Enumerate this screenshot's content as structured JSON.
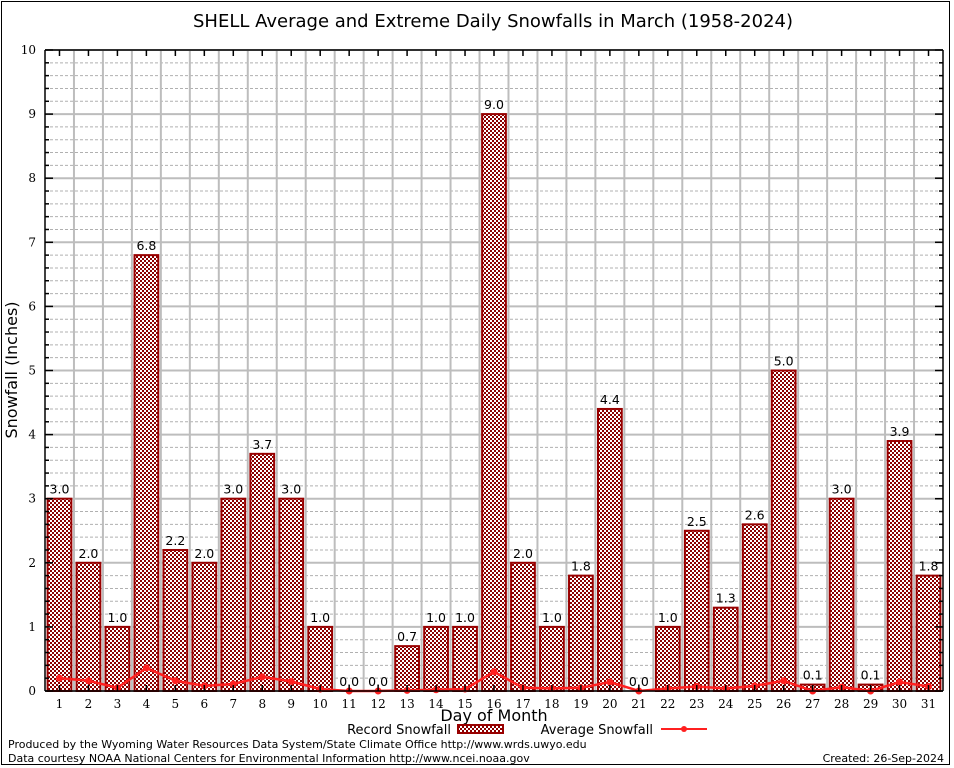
{
  "chart_data": {
    "type": "bar",
    "title": "SHELL Average and Extreme Daily Snowfalls in March (1958-2024)",
    "xlabel": "Day of Month",
    "ylabel": "Snowfall (Inches)",
    "ylim": [
      0,
      10
    ],
    "yticks": [
      "0",
      "1",
      "2",
      "3",
      "4",
      "5",
      "6",
      "7",
      "8",
      "9",
      "10"
    ],
    "grid": true,
    "categories": [
      "1",
      "2",
      "3",
      "4",
      "5",
      "6",
      "7",
      "8",
      "9",
      "10",
      "11",
      "12",
      "13",
      "14",
      "15",
      "16",
      "17",
      "18",
      "19",
      "20",
      "21",
      "22",
      "23",
      "24",
      "25",
      "26",
      "27",
      "28",
      "29",
      "30",
      "31"
    ],
    "series": [
      {
        "name": "Record Snowfall",
        "type": "bar",
        "color": "#990000",
        "values": [
          3.0,
          2.0,
          1.0,
          6.8,
          2.2,
          2.0,
          3.0,
          3.7,
          3.0,
          1.0,
          0.0,
          0.0,
          0.7,
          1.0,
          1.0,
          9.0,
          2.0,
          1.0,
          1.8,
          4.4,
          0.0,
          1.0,
          2.5,
          1.3,
          2.6,
          5.0,
          0.1,
          3.0,
          0.1,
          3.9,
          1.8
        ],
        "labels": [
          "3.0",
          "2.0",
          "1.0",
          "6.8",
          "2.2",
          "2.0",
          "3.0",
          "3.7",
          "3.0",
          "1.0",
          "0.0",
          "0.0",
          "0.7",
          "1.0",
          "1.0",
          "9.0",
          "2.0",
          "1.0",
          "1.8",
          "4.4",
          "0.0",
          "1.0",
          "2.5",
          "1.3",
          "2.6",
          "5.0",
          "0.1",
          "3.0",
          "0.1",
          "3.9",
          "1.8"
        ]
      },
      {
        "name": "Average Snowfall",
        "type": "line",
        "color": "#ff2020",
        "values": [
          0.2,
          0.16,
          0.05,
          0.36,
          0.16,
          0.08,
          0.11,
          0.22,
          0.15,
          0.03,
          0.0,
          0.0,
          0.01,
          0.02,
          0.03,
          0.3,
          0.05,
          0.04,
          0.05,
          0.14,
          0.0,
          0.04,
          0.07,
          0.04,
          0.08,
          0.16,
          0.0,
          0.06,
          0.0,
          0.14,
          0.07
        ]
      }
    ],
    "legend": {
      "placement": "bottom-center",
      "entries": [
        "Record Snowfall",
        "Average Snowfall"
      ]
    }
  },
  "footer": {
    "produced_by": "Produced by the Wyoming Water Resources Data System/State Climate Office http://www.wrds.uwyo.edu",
    "data_courtesy": "Data courtesy NOAA National Centers for Environmental Information http://www.ncei.noaa.gov",
    "created": "Created: 26-Sep-2024"
  }
}
